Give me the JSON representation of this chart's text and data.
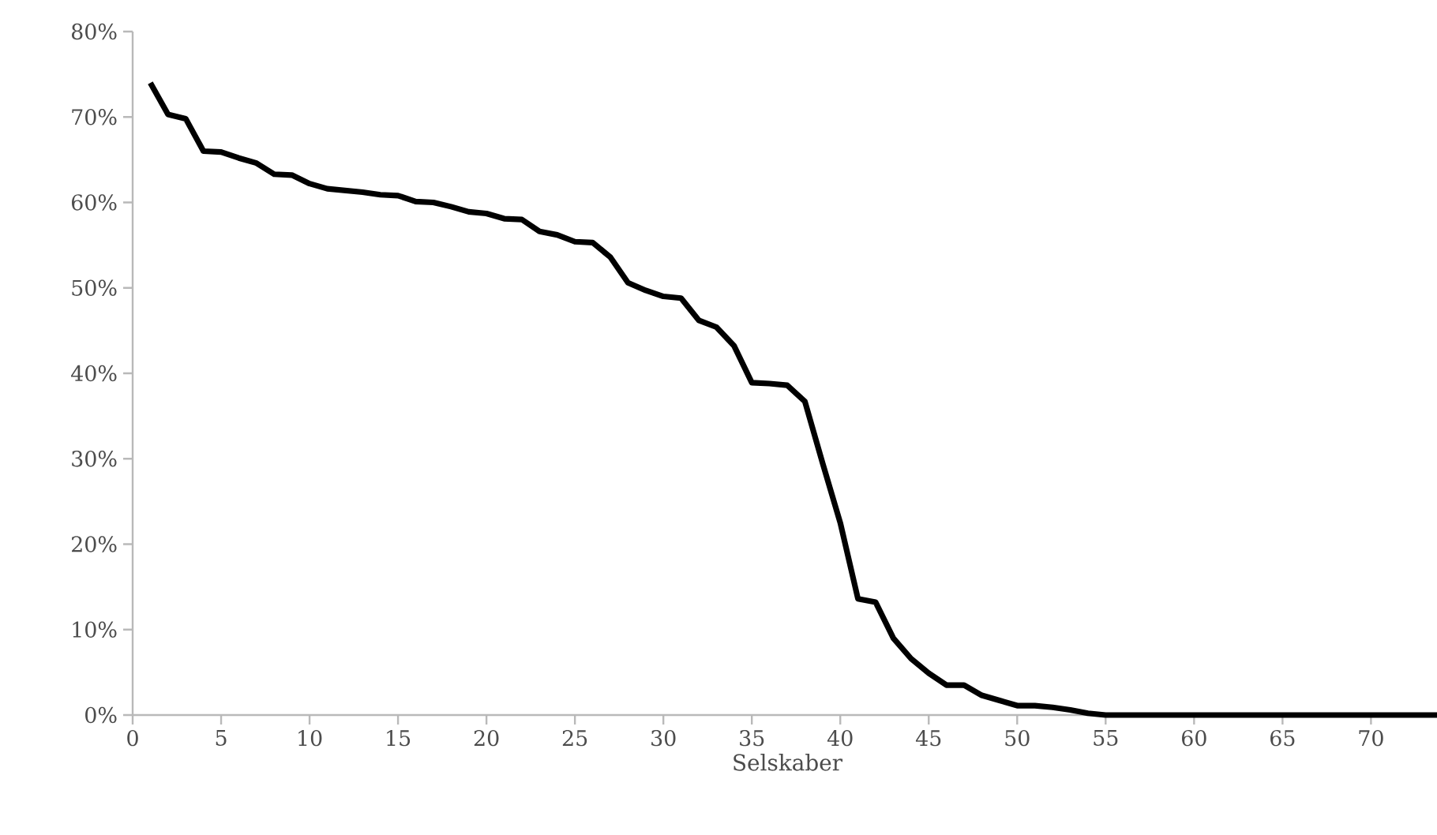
{
  "chart_data": {
    "type": "line",
    "xlabel": "Selskaber",
    "x": [
      1,
      2,
      3,
      4,
      5,
      6,
      7,
      8,
      9,
      10,
      11,
      12,
      13,
      14,
      15,
      16,
      17,
      18,
      19,
      20,
      21,
      22,
      23,
      24,
      25,
      26,
      27,
      28,
      29,
      30,
      31,
      32,
      33,
      34,
      35,
      36,
      37,
      38,
      39,
      40,
      41,
      42,
      43,
      44,
      45,
      46,
      47,
      48,
      49,
      50,
      51,
      52,
      53,
      54,
      55,
      56,
      57,
      58,
      59,
      60,
      61,
      62,
      63,
      64,
      65,
      66,
      67,
      68,
      69,
      70,
      71,
      72,
      73,
      74
    ],
    "series": [
      {
        "color": "#000000",
        "values": [
          74,
          70.3,
          69.8,
          66,
          65.9,
          65.2,
          64.6,
          63.3,
          63.2,
          62.2,
          61.6,
          61.4,
          61.2,
          60.9,
          60.8,
          60.1,
          60,
          59.5,
          58.9,
          58.7,
          58.1,
          58,
          56.6,
          56.2,
          55.4,
          55.3,
          53.6,
          50.6,
          49.7,
          49,
          48.8,
          46.2,
          45.4,
          43.2,
          38.9,
          38.8,
          38.6,
          36.7,
          29.5,
          22.5,
          13.6,
          13.2,
          9,
          6.6,
          4.9,
          3.5,
          3.5,
          2.3,
          1.7,
          1.1,
          1.1,
          0.9,
          0.6,
          0.2,
          0,
          0,
          0,
          0,
          0,
          0,
          0,
          0,
          0,
          0,
          0,
          0,
          0,
          0,
          0,
          0,
          0,
          0,
          0,
          0
        ]
      }
    ],
    "xlim": [
      0,
      74
    ],
    "ylim": [
      0,
      80
    ],
    "xticks": [
      0,
      5,
      10,
      15,
      20,
      25,
      30,
      35,
      40,
      45,
      50,
      55,
      60,
      65,
      70
    ],
    "yticks": [
      {
        "value": 0,
        "label": "0%"
      },
      {
        "value": 10,
        "label": "10%"
      },
      {
        "value": 20,
        "label": "20%"
      },
      {
        "value": 30,
        "label": "30%"
      },
      {
        "value": 40,
        "label": "40%"
      },
      {
        "value": 50,
        "label": "50%"
      },
      {
        "value": 60,
        "label": "60%"
      },
      {
        "value": 70,
        "label": "70%"
      },
      {
        "value": 80,
        "label": "80%"
      }
    ],
    "grid": false,
    "marker": "none",
    "line_style": "solid"
  }
}
